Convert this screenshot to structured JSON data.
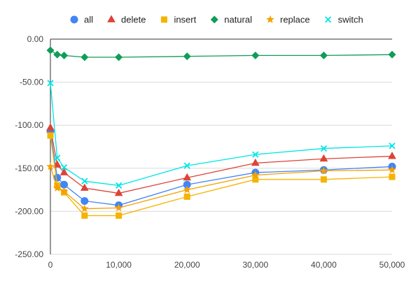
{
  "chart_data": {
    "type": "line",
    "title": "",
    "xlabel": "",
    "ylabel": "",
    "x": [
      0,
      1000,
      2000,
      5000,
      10000,
      20000,
      30000,
      40000,
      50000
    ],
    "xlim": [
      0,
      50000
    ],
    "ylim": [
      -250,
      0
    ],
    "x_ticks": [
      0,
      10000,
      20000,
      30000,
      40000,
      50000
    ],
    "x_tick_labels": [
      "0",
      "10,000",
      "20,000",
      "30,000",
      "40,000",
      "50,000"
    ],
    "y_ticks": [
      0,
      -50,
      -100,
      -150,
      -200,
      -250
    ],
    "y_tick_labels": [
      "0.00",
      "-50.00",
      "-100.00",
      "-150.00",
      "-200.00",
      "-250.00"
    ],
    "grid": true,
    "legend_position": "top",
    "series": [
      {
        "name": "all",
        "color": "#4285f4",
        "marker": "circle",
        "x": [
          0,
          1000,
          2000,
          5000,
          10000,
          20000,
          30000,
          40000,
          50000
        ],
        "values": [
          -107,
          -161,
          -169,
          -188,
          -193,
          -169,
          -155,
          -152,
          -148
        ]
      },
      {
        "name": "delete",
        "color": "#db4437",
        "marker": "triangle",
        "x": [
          0,
          1000,
          2000,
          5000,
          10000,
          20000,
          30000,
          40000,
          50000
        ],
        "values": [
          -103,
          -146,
          -155,
          -173,
          -179,
          -161,
          -144,
          -139,
          -136
        ]
      },
      {
        "name": "insert",
        "color": "#f4b400",
        "marker": "square",
        "x": [
          0,
          1000,
          2000,
          5000,
          10000,
          20000,
          30000,
          40000,
          50000
        ],
        "values": [
          -112,
          -170,
          -178,
          -205,
          -205,
          -183,
          -163,
          -163,
          -160
        ]
      },
      {
        "name": "natural",
        "color": "#0f9d58",
        "marker": "diamond",
        "x": [
          0,
          1000,
          2000,
          5000,
          10000,
          20000,
          30000,
          40000,
          50000
        ],
        "values": [
          -13,
          -18,
          -19,
          -21,
          -21,
          -20,
          -19,
          -19,
          -18
        ]
      },
      {
        "name": "replace",
        "color": "#f4a000",
        "marker": "star",
        "x": [
          0,
          1000,
          2000,
          5000,
          10000,
          20000,
          30000,
          40000,
          50000
        ],
        "values": [
          -148,
          -173,
          -177,
          -197,
          -196,
          -175,
          -158,
          -153,
          -152
        ]
      },
      {
        "name": "switch",
        "color": "#00e5e5",
        "marker": "x",
        "x": [
          0,
          1000,
          2000,
          5000,
          10000,
          20000,
          30000,
          40000,
          50000
        ],
        "values": [
          -51,
          -138,
          -149,
          -165,
          -170,
          -147,
          -134,
          -127,
          -124
        ]
      }
    ]
  }
}
